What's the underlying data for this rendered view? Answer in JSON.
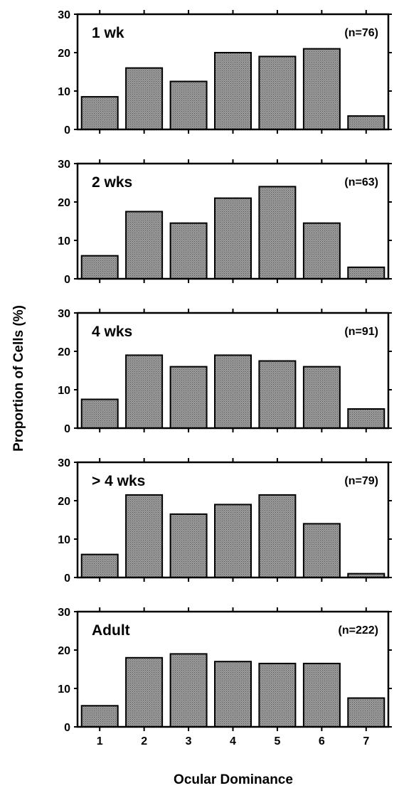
{
  "chart_data": {
    "type": "bar",
    "xlabel": "Ocular Dominance",
    "ylabel": "Proportion of Cells (%)",
    "categories": [
      "1",
      "2",
      "3",
      "4",
      "5",
      "6",
      "7"
    ],
    "ylim": [
      0,
      30
    ],
    "yticks": [
      0,
      10,
      20,
      30
    ],
    "grid": false,
    "bar_color": "#8c8c8c",
    "panels": [
      {
        "label": "1 wk",
        "n": "(n=76)",
        "values": [
          8.5,
          16,
          12.5,
          20,
          19,
          21,
          3.5
        ]
      },
      {
        "label": "2 wks",
        "n": "(n=63)",
        "values": [
          6,
          17.5,
          14.5,
          21,
          24,
          14.5,
          3
        ]
      },
      {
        "label": "4 wks",
        "n": "(n=91)",
        "values": [
          7.5,
          19,
          16,
          19,
          17.5,
          16,
          5
        ]
      },
      {
        "label": "> 4 wks",
        "n": "(n=79)",
        "values": [
          6,
          21.5,
          16.5,
          19,
          21.5,
          14,
          1
        ]
      },
      {
        "label": "Adult",
        "n": "(n=222)",
        "values": [
          5.5,
          18,
          19,
          17,
          16.5,
          16.5,
          7.5
        ]
      }
    ]
  }
}
